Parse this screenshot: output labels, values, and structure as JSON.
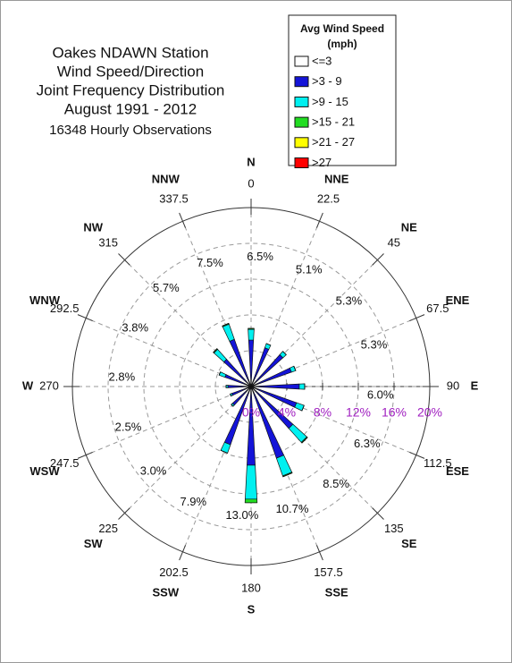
{
  "chart_data": {
    "type": "windrose",
    "title_lines": [
      "Oakes NDAWN Station",
      "Wind Speed/Direction",
      "Joint Frequency Distribution",
      "August 1991 - 2012"
    ],
    "subtitle": "16348 Hourly Observations",
    "legend_title": [
      "Avg Wind Speed",
      "(mph)"
    ],
    "categories": [
      "N",
      "NNE",
      "NE",
      "ENE",
      "E",
      "ESE",
      "SE",
      "SSE",
      "S",
      "SSW",
      "SW",
      "WSW",
      "W",
      "WNW",
      "NW",
      "NNW"
    ],
    "angles": [
      0,
      22.5,
      45,
      67.5,
      90,
      112.5,
      135,
      157.5,
      180,
      202.5,
      225,
      247.5,
      270,
      292.5,
      315,
      337.5
    ],
    "totals": [
      6.5,
      5.1,
      5.3,
      5.3,
      6.0,
      6.3,
      8.5,
      10.7,
      13.0,
      7.9,
      3.0,
      2.5,
      2.8,
      3.8,
      5.7,
      7.5
    ],
    "total_labels": [
      "6.5%",
      "5.1%",
      "5.3%",
      "5.3%",
      "6.0%",
      "6.3%",
      "8.5%",
      "10.7%",
      "13.0%",
      "7.9%",
      "3.0%",
      "2.5%",
      "2.8%",
      "3.8%",
      "5.7%",
      "7.5%"
    ],
    "rlim": [
      0,
      20
    ],
    "rticks": [
      {
        "value": 0,
        "label": "0%"
      },
      {
        "value": 4,
        "label": "4%"
      },
      {
        "value": 8,
        "label": "8%"
      },
      {
        "value": 12,
        "label": "12%"
      },
      {
        "value": 16,
        "label": "16%"
      },
      {
        "value": 20,
        "label": "20%"
      }
    ],
    "series": [
      {
        "name": "<=3",
        "color": "#ffffff",
        "values": [
          0.3,
          0.3,
          0.3,
          0.3,
          0.3,
          0.3,
          0.3,
          0.3,
          0.3,
          0.3,
          0.3,
          0.3,
          0.3,
          0.3,
          0.3,
          0.3
        ]
      },
      {
        "name": ">3 - 9",
        "color": "#1414d8",
        "values": [
          4.9,
          4.3,
          4.5,
          4.5,
          5.1,
          5.1,
          6.0,
          8.2,
          8.5,
          6.6,
          2.5,
          2.0,
          2.3,
          2.8,
          3.8,
          5.3
        ]
      },
      {
        "name": ">9 - 15",
        "color": "#00f0f0",
        "values": [
          1.2,
          0.5,
          0.5,
          0.5,
          0.6,
          0.9,
          2.1,
          2.1,
          3.8,
          1.0,
          0.2,
          0.2,
          0.2,
          0.7,
          1.5,
          1.8
        ]
      },
      {
        "name": ">15 - 21",
        "color": "#22dd22",
        "values": [
          0.1,
          0,
          0,
          0,
          0,
          0,
          0.1,
          0.1,
          0.4,
          0,
          0,
          0,
          0,
          0,
          0.1,
          0.1
        ]
      },
      {
        "name": ">21 - 27",
        "color": "#ffff00",
        "values": [
          0,
          0,
          0,
          0,
          0,
          0,
          0,
          0,
          0,
          0,
          0,
          0,
          0,
          0,
          0,
          0
        ]
      },
      {
        "name": ">27",
        "color": "#ff0000",
        "values": [
          0,
          0,
          0,
          0,
          0,
          0,
          0,
          0,
          0,
          0,
          0,
          0,
          0,
          0,
          0,
          0
        ]
      }
    ]
  }
}
